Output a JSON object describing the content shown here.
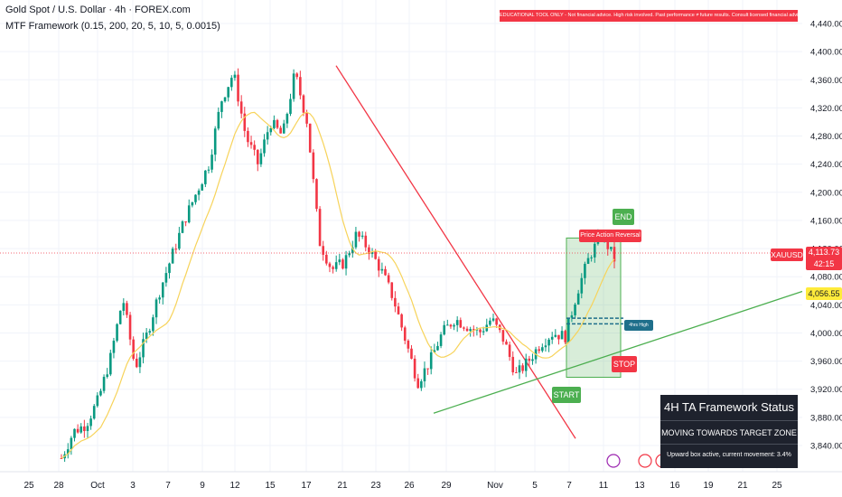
{
  "header": {
    "title": "Gold Spot / U.S. Dollar · 4h · FOREX.com",
    "indicator": "MTF Framework (0.15, 200, 20, 5, 10, 5, 0.0015)",
    "disclaimer": "EDUCATIONAL TOOL ONLY - Not financial advice. High risk involved. Past performance ≠ future results. Consult licensed financial advisors."
  },
  "chart_data": {
    "type": "candlestick",
    "symbol": "XAUUSD",
    "timeframe": "4h",
    "y_ticks": [
      3840,
      3880,
      3920,
      3960,
      4000,
      4040,
      4080,
      4120,
      4160,
      4200,
      4240,
      4280,
      4320,
      4360,
      4400,
      4440
    ],
    "y_tick_labels": [
      "3,840.00",
      "3,880.00",
      "3,920.00",
      "3,960.00",
      "4,000.00",
      "4,040.00",
      "4,080.00",
      "4,120.00",
      "4,160.00",
      "4,200.00",
      "4,240.00",
      "4,280.00",
      "4,320.00",
      "4,360.00",
      "4,400.00",
      "4,440.00"
    ],
    "x_ticks": [
      "25",
      "28",
      "Oct",
      "3",
      "7",
      "9",
      "12",
      "15",
      "17",
      "21",
      "23",
      "26",
      "29",
      "Nov",
      "5",
      "7",
      "11",
      "13",
      "16",
      "19",
      "21",
      "25"
    ],
    "price_path": [
      [
        "28",
        3822
      ],
      [
        "30",
        3860
      ],
      [
        "Oct 2",
        3870
      ],
      [
        "Oct 5",
        3905
      ],
      [
        "Oct 7",
        3965
      ],
      [
        "Oct 8",
        4050
      ],
      [
        "Oct 9",
        3950
      ],
      [
        "Oct 10",
        4000
      ],
      [
        "Oct 12",
        4060
      ],
      [
        "Oct 13",
        4110
      ],
      [
        "Oct 14",
        4160
      ],
      [
        "Oct 15",
        4200
      ],
      [
        "Oct 15.5",
        4240
      ],
      [
        "Oct 16",
        4330
      ],
      [
        "Oct 16.5",
        4370
      ],
      [
        "Oct 17",
        4280
      ],
      [
        "Oct 17.5",
        4240
      ],
      [
        "Oct 18",
        4300
      ],
      [
        "Oct 19",
        4280
      ],
      [
        "Oct 20",
        4370
      ],
      [
        "Oct 21",
        4300
      ],
      [
        "Oct 21.5",
        4130
      ],
      [
        "Oct 22",
        4090
      ],
      [
        "Oct 23",
        4100
      ],
      [
        "Oct 24",
        4140
      ],
      [
        "Oct 25",
        4120
      ],
      [
        "Oct 26",
        4090
      ],
      [
        "Oct 27",
        4050
      ],
      [
        "Oct 28",
        3990
      ],
      [
        "Oct 28.5",
        3930
      ],
      [
        "Oct 29",
        3960
      ],
      [
        "Oct 30",
        4000
      ],
      [
        "Oct 31",
        4020
      ],
      [
        "Nov 1",
        4010
      ],
      [
        "Nov 2",
        4000
      ],
      [
        "Nov 3",
        4020
      ],
      [
        "Nov 4",
        3990
      ],
      [
        "Nov 5",
        3940
      ],
      [
        "Nov 6",
        3960
      ],
      [
        "Nov 7",
        3985
      ],
      [
        "Nov 8",
        4000
      ],
      [
        "Nov 9",
        3995
      ],
      [
        "Nov 10",
        4060
      ],
      [
        "Nov 10.5",
        4110
      ],
      [
        "Nov 11",
        4140
      ],
      [
        "Nov 11.5",
        4105
      ]
    ],
    "annotations": {
      "end_label": "END",
      "start_label": "START",
      "stop_label": "STOP",
      "reversal_label": "Price Action Reversal",
      "level_label": "4hrs High",
      "symbol_badge": "XAUUSD",
      "current_price": "4,113.73",
      "countdown": "42:15",
      "trendline_price": "4,056.55"
    }
  },
  "status_box": {
    "title": "4H TA Framework Status",
    "message": "MOVING TOWARDS TARGET ZONE",
    "detail": "Upward box active, current movement: 3.4%"
  },
  "colors": {
    "bull": "#089981",
    "bear": "#f23645",
    "ma": "#f7d35a",
    "trend_up": "#4caf50",
    "trend_down": "#f23645",
    "box": "#4caf50",
    "panel": "#1e222d",
    "price_line": "#f23645"
  }
}
